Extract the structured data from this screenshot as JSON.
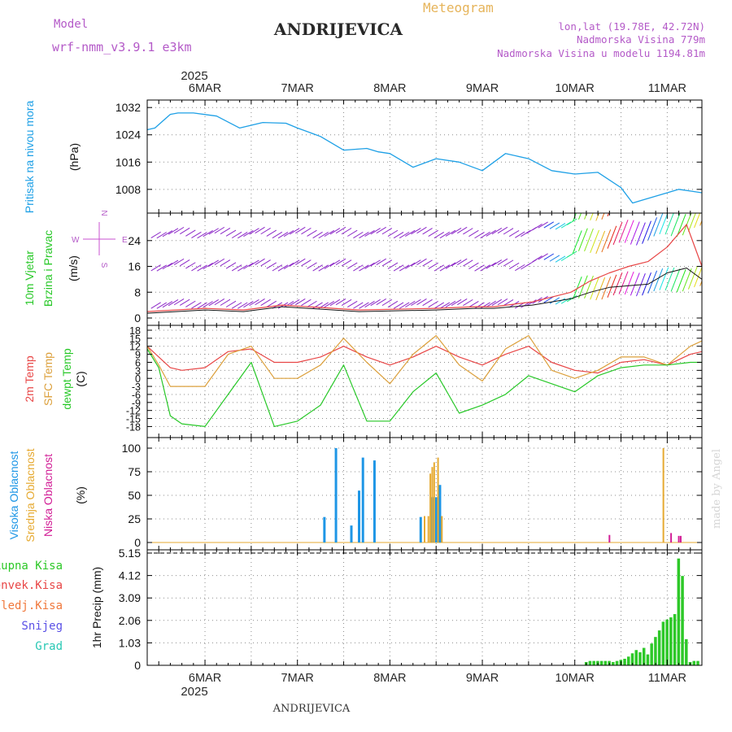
{
  "header": {
    "model_label": "Model",
    "model_name": "wrf-nmm_v3.9.1 e3km",
    "app_title": "Meteogram",
    "location": "ANDRIJEVICA",
    "coords": "lon,lat (19.78E, 42.72N)",
    "elevation": "Nadmorska Visina 779m",
    "model_elevation": "Nadmorska Visina u modelu 1194.81m"
  },
  "footer": {
    "location": "ANDRIJEVICA",
    "credit": "made by Angel"
  },
  "time_axis": {
    "days": [
      "6MAR",
      "7MAR",
      "8MAR",
      "9MAR",
      "10MAR",
      "11MAR"
    ],
    "year": "2025",
    "start_hour": -15,
    "end_hour": 129
  },
  "colors": {
    "pressure": "#1ea0e6",
    "temp": "#e84646",
    "sfc": "#dca03c",
    "dew": "#28c828",
    "high": "#1e96e6",
    "mid": "#e6aa32",
    "low": "#d21e96",
    "precip": "#2dc828",
    "wind_purple": "#8c28c8",
    "title": "#b45ac8",
    "grid": "#8c8c8c"
  },
  "chart_data": [
    {
      "type": "line",
      "name": "pressure",
      "ylabel_main": "Pritisak na nivou mora",
      "ylabel_unit": "(hPa)",
      "yticks": [
        "1032",
        "1024",
        "1016",
        "1008"
      ],
      "ylim": [
        1002,
        1033
      ],
      "x": [
        -15,
        -13,
        -11,
        -9,
        -7,
        -3,
        3,
        9,
        15,
        21,
        24,
        30,
        36,
        42,
        45,
        48,
        54,
        60,
        66,
        72,
        78,
        84,
        90,
        96,
        102,
        108,
        111,
        114,
        120,
        123,
        126,
        129
      ],
      "values": [
        1025.5,
        1026,
        1028,
        1030,
        1030.4,
        1030.4,
        1029.5,
        1026,
        1027.6,
        1027.4,
        1026,
        1023.5,
        1019.5,
        1020,
        1019,
        1018.5,
        1014.5,
        1017,
        1016,
        1013.5,
        1018.5,
        1017,
        1013.5,
        1012.5,
        1013,
        1008.5,
        1004,
        1005,
        1007,
        1008,
        1007.5,
        1007
      ]
    },
    {
      "type": "line",
      "name": "wind",
      "ylabel_main": "10m Vjetar",
      "ylabel_sub": "Brzina i Pravac",
      "ylabel_unit": "(m/s)",
      "compass": {
        "n": "N",
        "s": "S",
        "e": "E",
        "w": "W"
      },
      "yticks": [
        "24",
        "16",
        "8",
        "0"
      ],
      "ylim": [
        0,
        30
      ],
      "x": [
        -15,
        0,
        10,
        20,
        40,
        60,
        70,
        75,
        85,
        95,
        100,
        105,
        110,
        115,
        120,
        125,
        129
      ],
      "series": [
        {
          "name": "wind speed",
          "values": [
            1.5,
            2.5,
            2,
            3.5,
            2,
            2.5,
            3,
            3,
            4,
            6,
            8,
            9.5,
            10,
            10.5,
            14,
            15.5,
            12
          ]
        },
        {
          "name": "wind gust",
          "values": [
            2,
            3,
            2.5,
            4,
            2.5,
            3,
            3.5,
            3.5,
            5,
            8,
            11.5,
            14,
            16,
            17.5,
            22,
            29,
            16
          ]
        }
      ]
    },
    {
      "type": "line",
      "name": "temperature",
      "ylabel_lines": [
        "2m Temp",
        "SFC Temp",
        "dewpt Temp"
      ],
      "ylabel_unit": "(C)",
      "yticks": [
        "18",
        "15",
        "12",
        "9",
        "6",
        "3",
        "0",
        "-3",
        "-6",
        "-9",
        "-12",
        "-15",
        "-18"
      ],
      "ylim": [
        -20,
        18
      ],
      "x": [
        -15,
        -12,
        -9,
        -6,
        0,
        6,
        12,
        18,
        24,
        30,
        36,
        42,
        48,
        54,
        60,
        66,
        72,
        78,
        84,
        90,
        96,
        102,
        108,
        114,
        120,
        126,
        129
      ],
      "series": [
        {
          "name": "2m Temp",
          "values": [
            12,
            8,
            4,
            3,
            4,
            10,
            11,
            6,
            6,
            8,
            12,
            8,
            5,
            8,
            12,
            8,
            5,
            9,
            12,
            6,
            3,
            2,
            6,
            7,
            5,
            9,
            10
          ]
        },
        {
          "name": "SFC Temp",
          "values": [
            12,
            5,
            -3,
            -3,
            -3,
            9,
            12,
            0,
            0,
            5,
            15,
            6,
            -2,
            9,
            16,
            5,
            -1,
            11,
            16,
            3,
            0,
            3,
            8,
            8,
            5,
            12,
            14
          ]
        },
        {
          "name": "dewpt Temp",
          "values": [
            11,
            4,
            -14,
            -17,
            -18,
            -6,
            6,
            -18,
            -16,
            -10,
            5,
            -16,
            -16,
            -5,
            2,
            -13,
            -10,
            -6,
            1,
            -2,
            -5,
            1,
            4,
            5,
            5,
            6,
            6
          ]
        }
      ]
    },
    {
      "type": "bar",
      "name": "cloud",
      "ylabel_lines": [
        "Visoka Oblacnost",
        "Srednja Oblacnost",
        "Niska Oblacnost"
      ],
      "ylabel_unit": "(%)",
      "yticks": [
        "100",
        "75",
        "50",
        "25",
        "0"
      ],
      "ylim": [
        0,
        100
      ],
      "series": [
        {
          "name": "Visoka Oblacnost",
          "x": [
            31,
            34,
            38,
            40,
            41,
            44,
            56,
            59,
            60,
            61
          ],
          "values": [
            27,
            100,
            18,
            55,
            90,
            87,
            27,
            48,
            48,
            61
          ]
        },
        {
          "name": "Srednja Oblacnost",
          "x": [
            57,
            58,
            58.5,
            59,
            59.5,
            60.5,
            61.5,
            119
          ],
          "values": [
            28,
            28,
            73,
            80,
            85,
            90,
            28,
            100
          ]
        },
        {
          "name": "Niska Oblacnost",
          "x": [
            105,
            121,
            123,
            123.5
          ],
          "values": [
            8,
            10,
            7,
            7
          ]
        }
      ]
    },
    {
      "type": "bar",
      "name": "precipitation",
      "legend": [
        "Ukupna Kisa",
        "Konvek.Kisa",
        "Zaledj.Kisa",
        "Snijeg",
        "Grad"
      ],
      "ylabel_unit": "1hr Precip (mm)",
      "yticks": [
        "5.15",
        "4.12",
        "3.09",
        "2.06",
        "1.03",
        "0"
      ],
      "ylim": [
        0,
        5.15
      ],
      "x": [
        99,
        100,
        101,
        102,
        103,
        104,
        105,
        106,
        107,
        108,
        109,
        110,
        111,
        112,
        113,
        114,
        115,
        116,
        117,
        118,
        119,
        120,
        121,
        122,
        123,
        124,
        125,
        126,
        127,
        128
      ],
      "values": [
        0.15,
        0.2,
        0.2,
        0.2,
        0.2,
        0.2,
        0.2,
        0.15,
        0.2,
        0.25,
        0.3,
        0.4,
        0.55,
        0.7,
        0.6,
        0.8,
        0.5,
        1.0,
        1.3,
        1.6,
        2.0,
        2.1,
        2.2,
        2.35,
        4.9,
        4.1,
        1.2,
        0.15,
        0.2,
        0.2
      ]
    }
  ]
}
